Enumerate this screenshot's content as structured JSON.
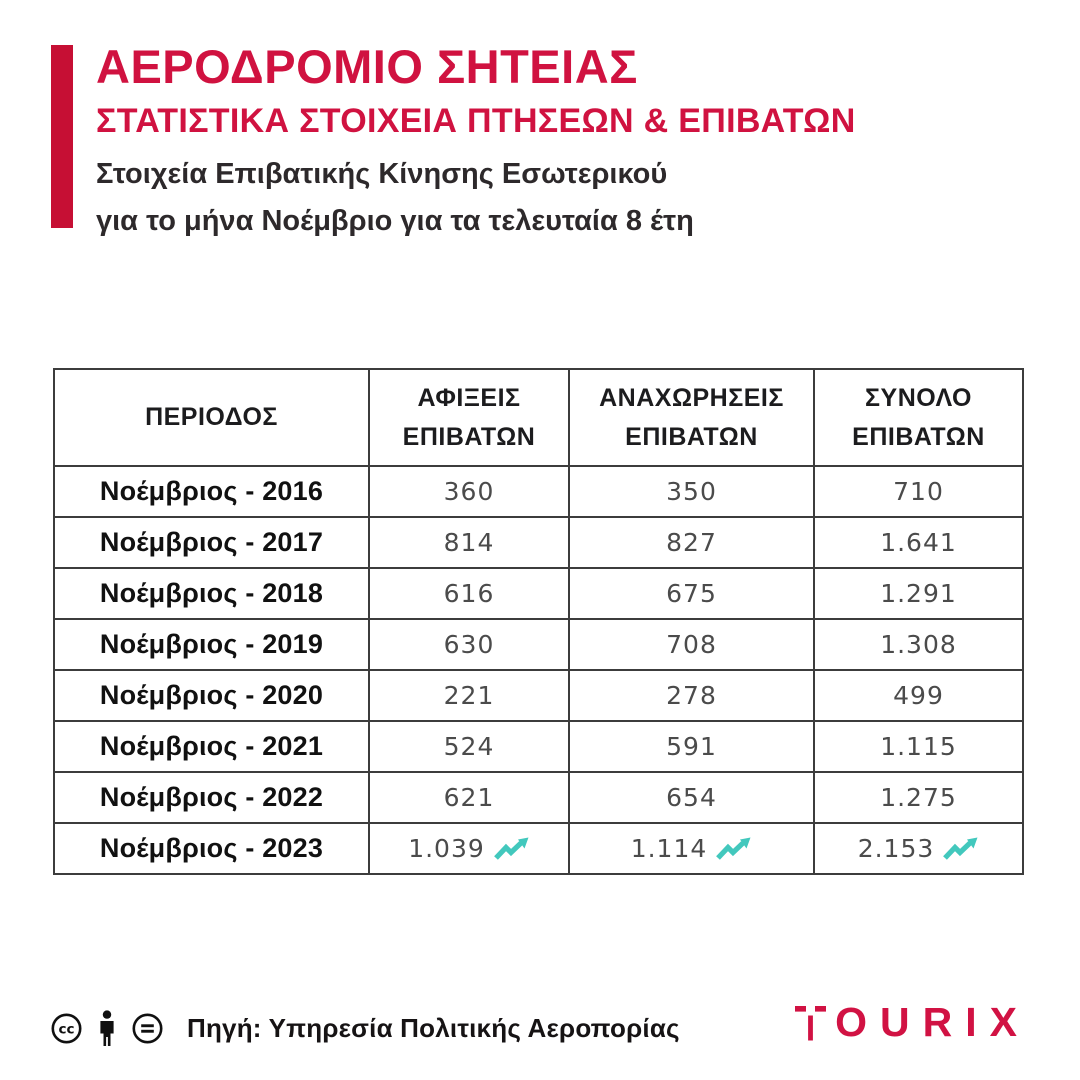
{
  "header": {
    "title": "ΑΕΡΟΔΡΟΜΙΟ ΣΗΤΕΙΑΣ",
    "subtitle": "ΣΤΑΤΙΣΤΙΚΑ ΣΤΟΙΧΕΙΑ ΠΤΗΣΕΩΝ & ΕΠΙΒΑΤΩΝ",
    "description_line1": "Στοιχεία Επιβατικής Κίνησης Εσωτερικού",
    "description_line2": "για το μήνα Νοέμβριο για τα τελευταία 8 έτη"
  },
  "table": {
    "columns": [
      "ΠΕΡΙΟΔΟΣ",
      "ΑΦΙΞΕΙΣ\nΕΠΙΒΑΤΩΝ",
      "ΑΝΑΧΩΡΗΣΕΙΣ\nΕΠΙΒΑΤΩΝ",
      "ΣΥΝΟΛΟ\nΕΠΙΒΑΤΩΝ"
    ],
    "rows": [
      {
        "period": "Νοέμβριος - 2016",
        "arrivals": "360",
        "departures": "350",
        "total": "710",
        "trend": false
      },
      {
        "period": "Νοέμβριος - 2017",
        "arrivals": "814",
        "departures": "827",
        "total": "1.641",
        "trend": false
      },
      {
        "period": "Νοέμβριος - 2018",
        "arrivals": "616",
        "departures": "675",
        "total": "1.291",
        "trend": false
      },
      {
        "period": "Νοέμβριος - 2019",
        "arrivals": "630",
        "departures": "708",
        "total": "1.308",
        "trend": false
      },
      {
        "period": "Νοέμβριος - 2020",
        "arrivals": "221",
        "departures": "278",
        "total": "499",
        "trend": false
      },
      {
        "period": "Νοέμβριος - 2021",
        "arrivals": "524",
        "departures": "591",
        "total": "1.115",
        "trend": false
      },
      {
        "period": "Νοέμβριος - 2022",
        "arrivals": "621",
        "departures": "654",
        "total": "1.275",
        "trend": false
      },
      {
        "period": "Νοέμβριος - 2023",
        "arrivals": "1.039",
        "departures": "1.114",
        "total": "2.153",
        "trend": true
      }
    ]
  },
  "footer": {
    "source": "Πηγή: Υπηρεσία Πολιτικής Αεροπορίας",
    "license_icons": [
      "cc-icon",
      "attribution-person-icon",
      "no-derivatives-icon"
    ],
    "logo_text": "TOURIX",
    "logo_rest": "OURIX"
  },
  "colors": {
    "title_red": "#d01240",
    "bar_red": "#c60f34",
    "logo_red": "#d11243",
    "trend_teal": "#42c8bd",
    "table_border": "#3c3c3c",
    "number_gray": "#4b4b4b",
    "text_dark": "#161314"
  },
  "icons": {
    "trend": "trend-up-icon"
  }
}
